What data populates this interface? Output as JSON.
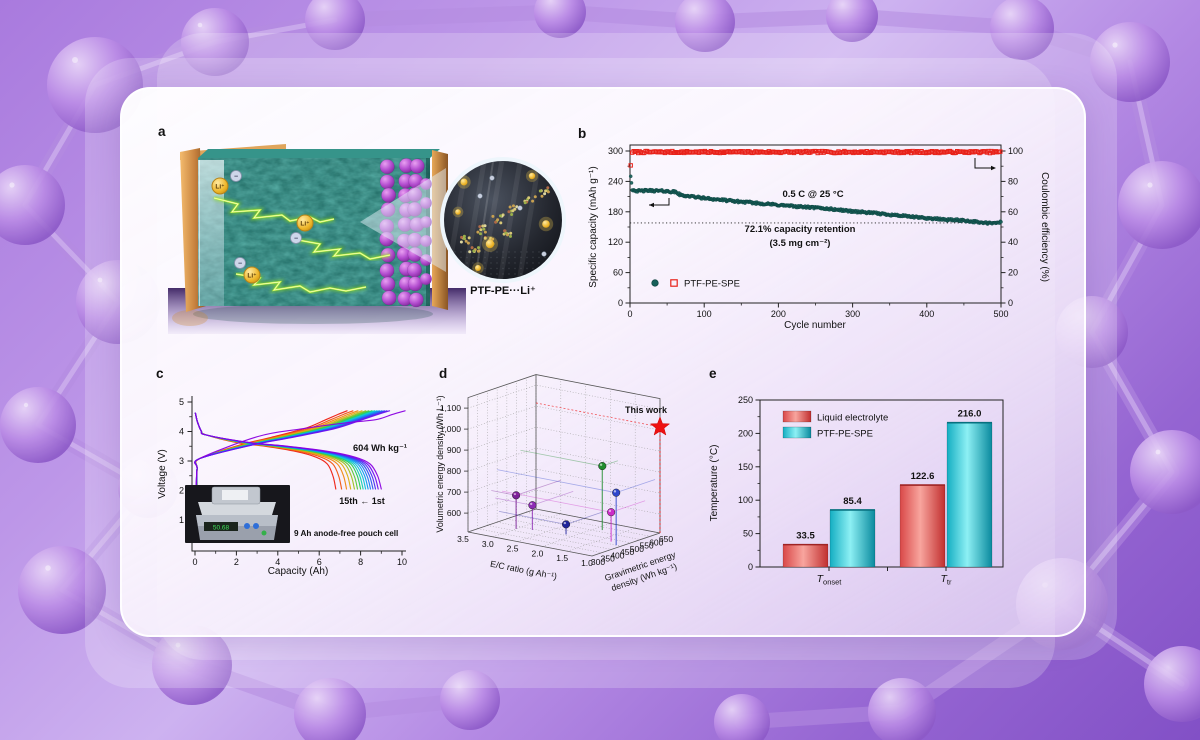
{
  "figure": {
    "panel_labels": {
      "a": "a",
      "b": "b",
      "c": "c",
      "d": "d",
      "e": "e"
    },
    "panel_a": {
      "inset_label": "PTF-PE···Li⁺",
      "ion_label": "Li⁺",
      "anion_label": "−"
    }
  },
  "chart_data": [
    {
      "id": "b",
      "type": "scatter",
      "xlabel": "Cycle number",
      "ylabel_left": "Specific capacity (mAh g⁻¹)",
      "ylabel_right": "Coulombic efficiency (%)",
      "xlim": [
        0,
        500
      ],
      "ylim_left": [
        0,
        310
      ],
      "ylim_right": [
        0,
        103
      ],
      "x_ticks": [
        0,
        100,
        200,
        300,
        400,
        500
      ],
      "y_left_ticks": [
        0,
        60,
        120,
        180,
        240,
        300
      ],
      "y_right_ticks": [
        0,
        20,
        40,
        60,
        80,
        100
      ],
      "legend": {
        "label": "PTF-PE-SPE"
      },
      "series": [
        {
          "name": "specific-capacity",
          "marker": "circle",
          "color": "#17605A",
          "edge": "#0B3F3B",
          "anchors": [
            [
              1,
              250
            ],
            [
              3,
              224
            ],
            [
              10,
              221
            ],
            [
              25,
              222
            ],
            [
              45,
              221
            ],
            [
              62,
              219
            ],
            [
              68,
              213
            ],
            [
              100,
              207
            ],
            [
              140,
              201
            ],
            [
              180,
              196
            ],
            [
              220,
              191
            ],
            [
              260,
              187
            ],
            [
              300,
              181
            ],
            [
              340,
              176
            ],
            [
              380,
              170
            ],
            [
              420,
              165
            ],
            [
              450,
              163
            ],
            [
              478,
              158
            ],
            [
              490,
              157
            ],
            [
              500,
              160
            ]
          ]
        },
        {
          "name": "coulombic-efficiency",
          "marker": "open-square",
          "color": "#E8221A",
          "first_value": 90.5,
          "steady_value": 99.3
        }
      ],
      "annotations": {
        "rate": "0.5 C @ 25 °C",
        "retention_value": 158,
        "retention_line_1": "72.1% capacity retention",
        "retention_line_2": "(3.5 mg cm⁻²)"
      }
    },
    {
      "id": "c",
      "type": "line",
      "xlabel": "Capacity (Ah)",
      "ylabel": "Voltage (V)",
      "xlim": [
        0,
        10.5
      ],
      "ylim": [
        0.4,
        5.1
      ],
      "x_ticks": [
        0,
        2,
        4,
        6,
        8,
        10
      ],
      "y_ticks": [
        1,
        2,
        3,
        4,
        5
      ],
      "cycles": {
        "count": 15,
        "colors": [
          "#8A00E0",
          "#6A10F0",
          "#4530F0",
          "#2B55F0",
          "#1B7AF0",
          "#0A9CF0",
          "#0EC0D8",
          "#0ED0B0",
          "#22CC55",
          "#55C838",
          "#9AC020",
          "#D8B010",
          "#F08810",
          "#F05510",
          "#EE1E10"
        ],
        "discharge_end_ah": [
          9.0,
          8.85,
          8.72,
          8.6,
          8.48,
          8.36,
          8.24,
          8.12,
          8.0,
          7.85,
          7.7,
          7.52,
          7.32,
          7.08,
          6.8
        ],
        "charge_top_v": 4.7,
        "discharge_cutoff_v": 2.05
      },
      "annotations": {
        "energy": "604 Wh kg⁻¹",
        "order": "15th ← 1st",
        "inset_caption": "9 Ah anode-free pouch cell",
        "scale_display": "50.68"
      }
    },
    {
      "id": "d",
      "type": "scatter3d",
      "zlabel": "Volumetric energy density (Wh L⁻¹)",
      "xlabel": "E/C ratio (g Ah⁻¹)",
      "ylabel_line_1": "Gravimetric energy",
      "ylabel_line_2": "density (Wh kg⁻¹)",
      "x_ticks": [
        "3.5",
        "3.0",
        "2.5",
        "2.0",
        "1.5",
        "1.0"
      ],
      "x_tick_values": [
        3.5,
        3.0,
        2.5,
        2.0,
        1.5,
        1.0
      ],
      "y_ticks": [
        300,
        350,
        400,
        450,
        500,
        550,
        600,
        650
      ],
      "z_ticks": [
        600,
        700,
        800,
        900,
        1000,
        1100
      ],
      "z_tick_labels": [
        "600",
        "700",
        "800",
        "900",
        "1,000",
        "1,100"
      ],
      "points": [
        {
          "ec": 3.0,
          "ged": 420,
          "ved": 670,
          "color": "#7A1F96"
        },
        {
          "ec": 2.75,
          "ged": 440,
          "ved": 628,
          "color": "#8D2BB4"
        },
        {
          "ec": 2.15,
          "ged": 460,
          "ved": 558,
          "color": "#20249A"
        },
        {
          "ec": 1.85,
          "ged": 570,
          "ved": 815,
          "color": "#1F8C2C"
        },
        {
          "ec": 1.1,
          "ged": 450,
          "ved": 760,
          "color": "#2D45CC"
        },
        {
          "ec": 1.3,
          "ged": 475,
          "ved": 650,
          "color": "#CC2CC8"
        }
      ],
      "highlight": {
        "label": "This work",
        "ec": 1.0,
        "ged": 650,
        "ved": 1015,
        "color": "#EE1111"
      }
    },
    {
      "id": "e",
      "type": "bar",
      "ylabel": "Temperature (°C)",
      "ylim": [
        0,
        250
      ],
      "y_ticks": [
        0,
        50,
        100,
        150,
        200,
        250
      ],
      "categories": [
        {
          "main": "T",
          "sub": "onset"
        },
        {
          "main": "T",
          "sub": "tr"
        }
      ],
      "series": [
        {
          "name": "Liquid electrolyte",
          "color_start": "#D94848",
          "color_mid": "#F8A59E",
          "color_edge": "#C12F2F",
          "values": [
            33.5,
            122.6
          ]
        },
        {
          "name": "PTF-PE-SPE",
          "color_start": "#14AEC2",
          "color_mid": "#8DF0F4",
          "color_edge": "#0A8A9E",
          "values": [
            85.4,
            216.0
          ]
        }
      ],
      "value_labels": [
        "33.5",
        "85.4",
        "122.6",
        "216.0"
      ]
    }
  ]
}
